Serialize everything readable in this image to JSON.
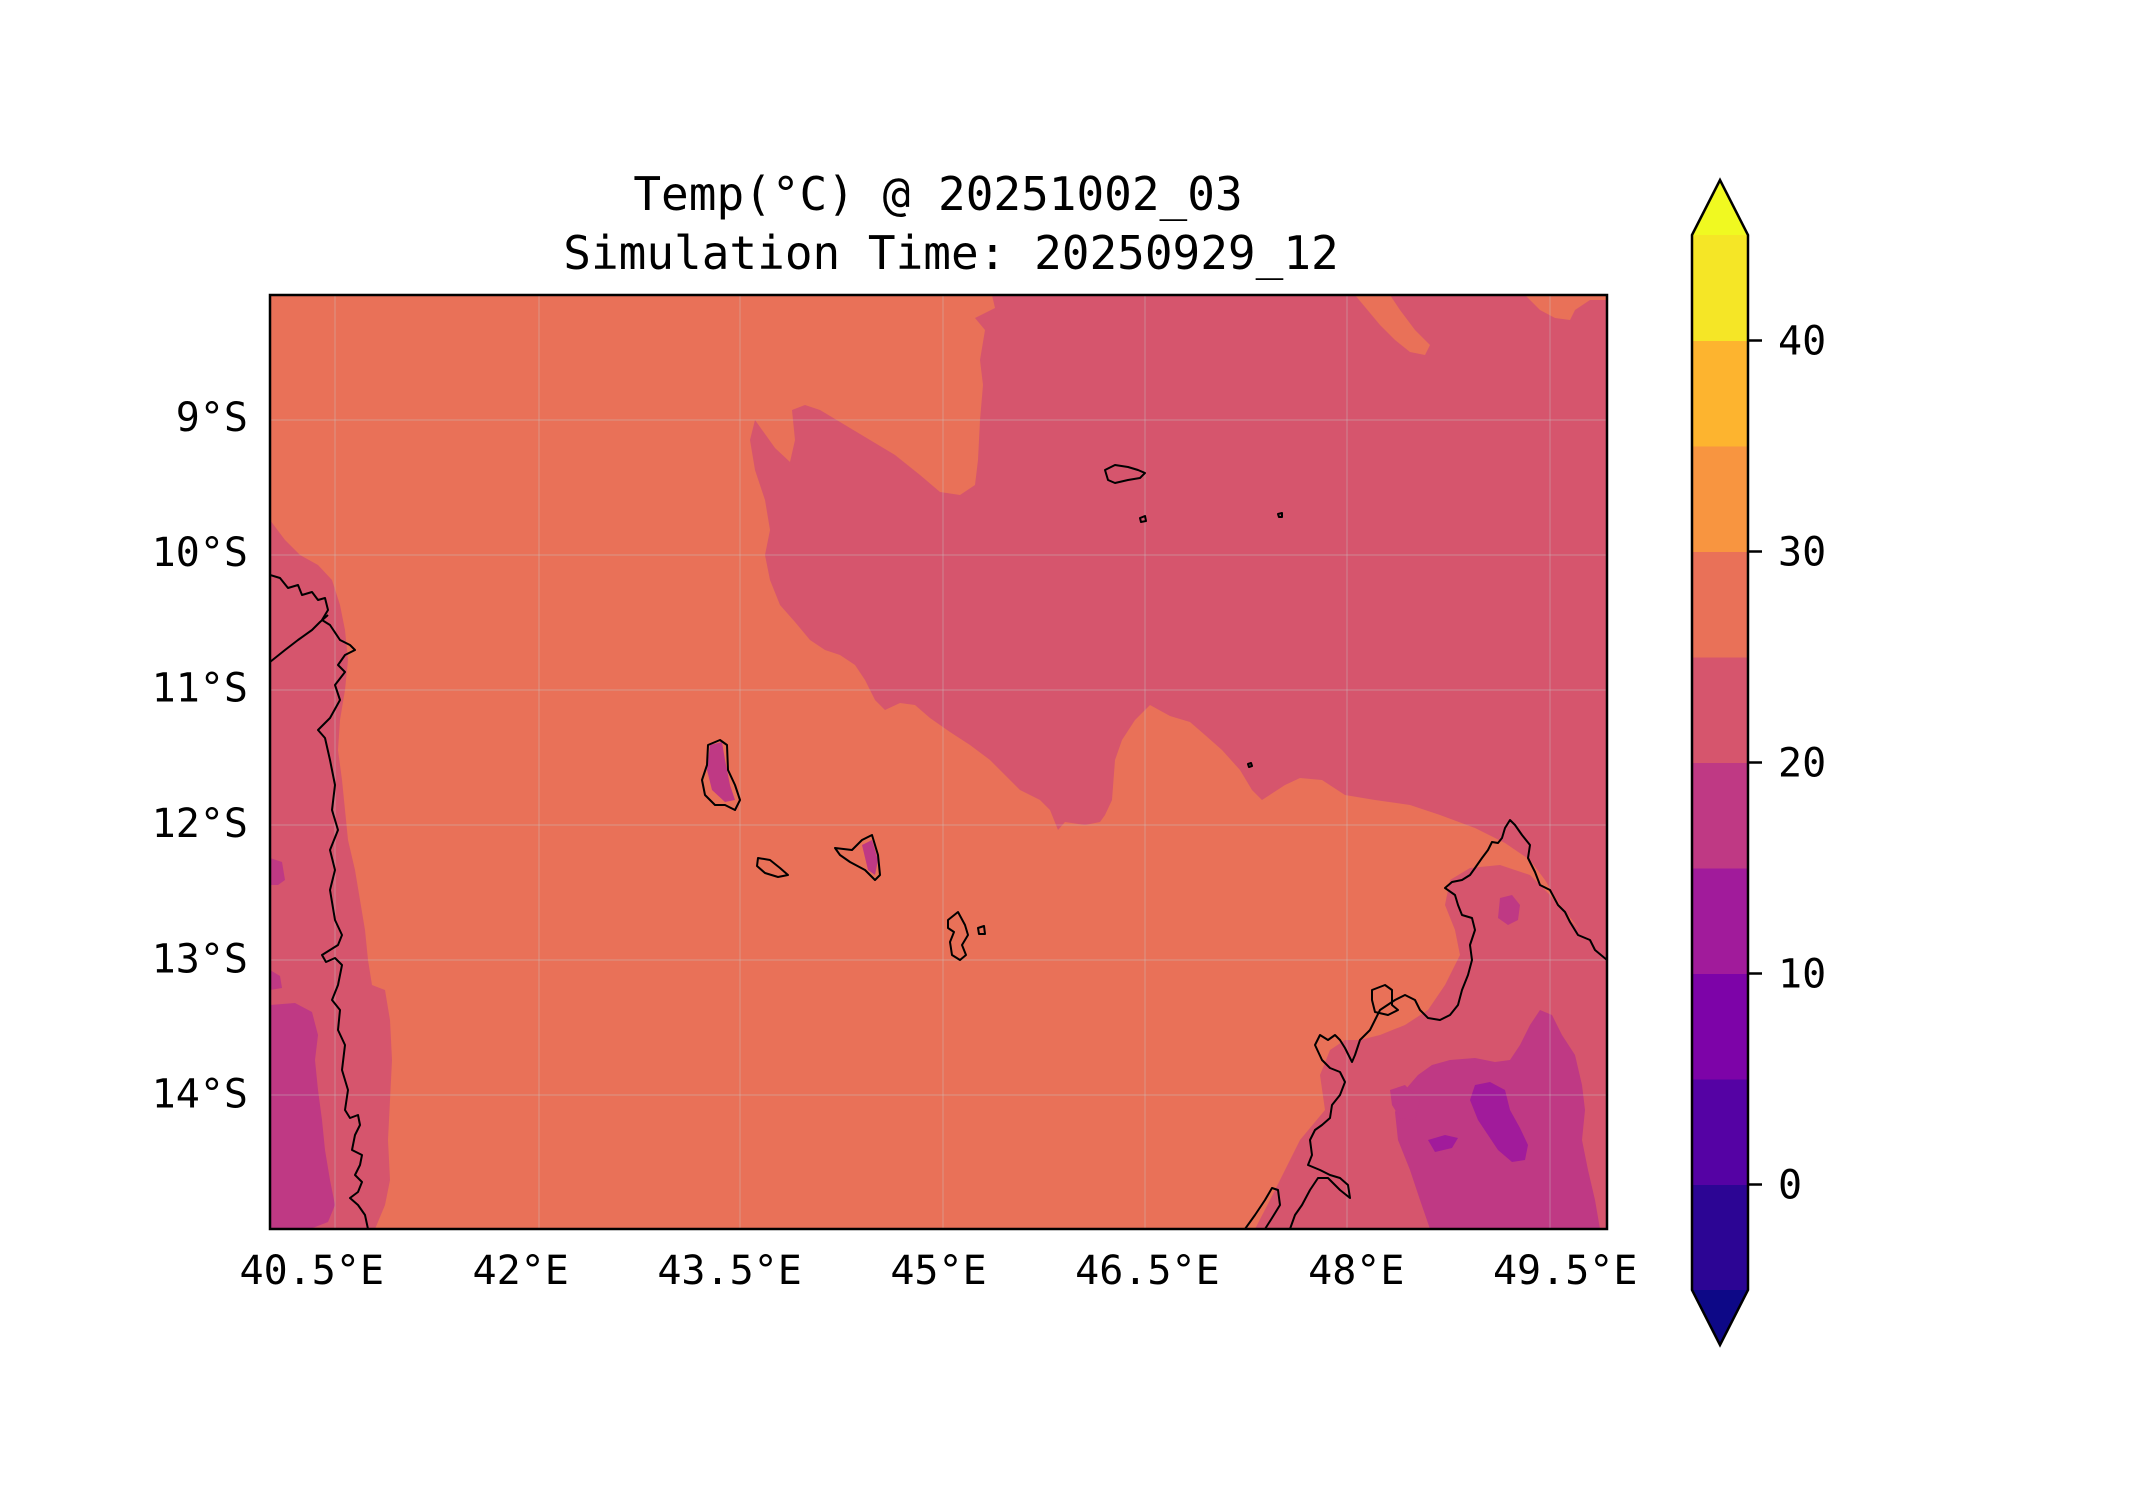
{
  "title_line1": "Temp(°C) @ 20251002_03",
  "title_line2": "Simulation Time: 20250929_12",
  "map": {
    "lon_range": [
      40.2,
      49.8
    ],
    "lat_range": [
      -15.0,
      -8.1
    ],
    "lon_ticks": [
      {
        "value": 40.5,
        "label": "40.5°E"
      },
      {
        "value": 42.0,
        "label": "42°E"
      },
      {
        "value": 43.5,
        "label": "43.5°E"
      },
      {
        "value": 45.0,
        "label": "45°E"
      },
      {
        "value": 46.5,
        "label": "46.5°E"
      },
      {
        "value": 48.0,
        "label": "48°E"
      },
      {
        "value": 49.5,
        "label": "49.5°E"
      }
    ],
    "lat_ticks": [
      {
        "value": -9,
        "label": "9°S"
      },
      {
        "value": -10,
        "label": "10°S"
      },
      {
        "value": -11,
        "label": "11°S"
      },
      {
        "value": -12,
        "label": "12°S"
      },
      {
        "value": -13,
        "label": "13°S"
      },
      {
        "value": -14,
        "label": "14°S"
      }
    ],
    "gridlines": true
  },
  "colorbar": {
    "min": -5,
    "max": 45,
    "extend": "both",
    "levels": [
      -5,
      0,
      5,
      10,
      15,
      20,
      25,
      30,
      35,
      40,
      45
    ],
    "colors": [
      "#2c0594",
      "#5502a4",
      "#7d03a8",
      "#a11b9b",
      "#bf3984",
      "#d6556d",
      "#e97158",
      "#f89540",
      "#fdb42f",
      "#f5e626"
    ],
    "under_color": "#0d0887",
    "over_color": "#f0f921",
    "ticks": [
      {
        "value": 0,
        "label": "0"
      },
      {
        "value": 10,
        "label": "10"
      },
      {
        "value": 20,
        "label": "20"
      },
      {
        "value": 30,
        "label": "30"
      },
      {
        "value": 40,
        "label": "40"
      }
    ]
  }
}
